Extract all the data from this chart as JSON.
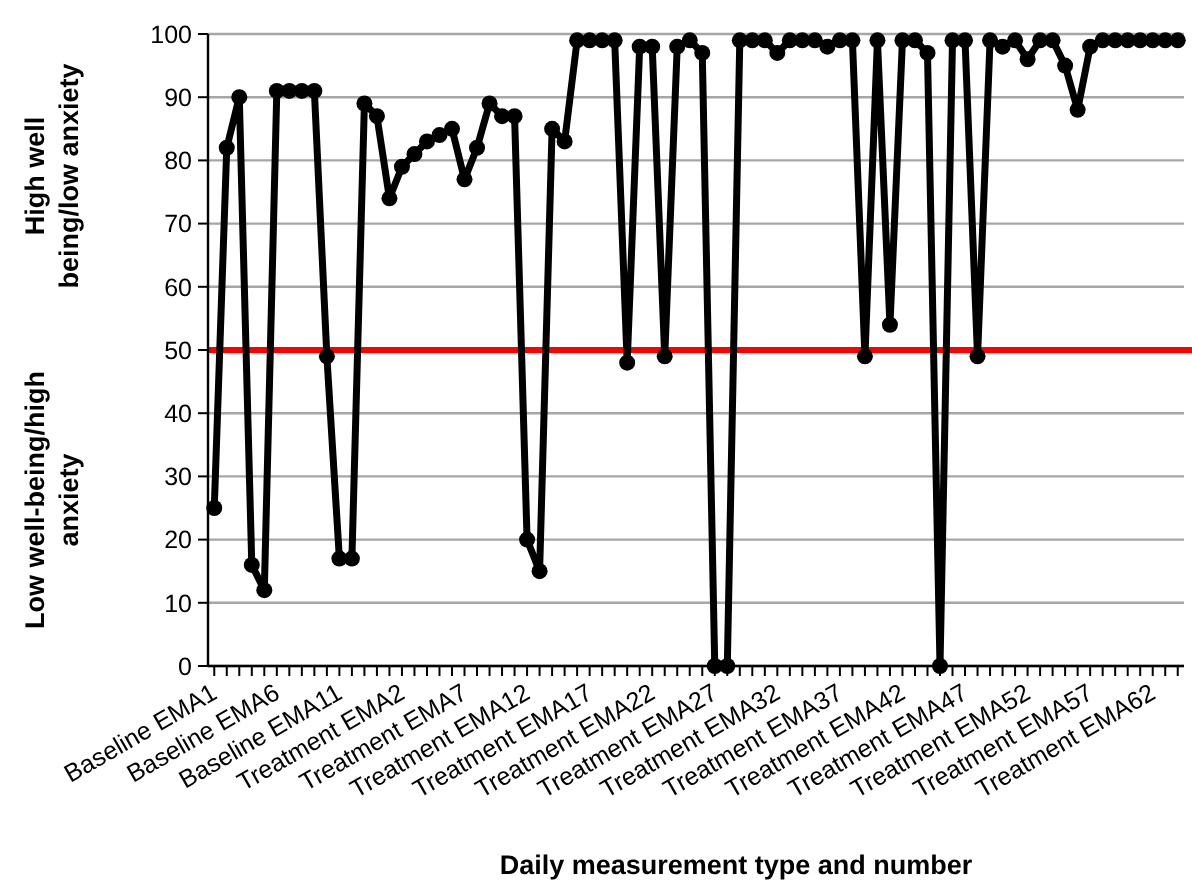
{
  "chart_data": {
    "type": "line",
    "xlabel": "Daily measurement type and number",
    "annotations": [
      "High well being/low anxiety",
      "Low well-being/high anxiety"
    ],
    "categories": [
      "Baseline EMA1",
      null,
      null,
      null,
      null,
      "Baseline EMA6",
      null,
      null,
      null,
      null,
      "Baseline EMA11",
      null,
      null,
      null,
      null,
      "Treatment EMA2",
      null,
      null,
      null,
      null,
      "Treatment EMA7",
      null,
      null,
      null,
      null,
      "Treatment EMA12",
      null,
      null,
      null,
      null,
      "Treatment EMA17",
      null,
      null,
      null,
      null,
      "Treatment EMA22",
      null,
      null,
      null,
      null,
      "Treatment EMA27",
      null,
      null,
      null,
      null,
      "Treatment EMA32",
      null,
      null,
      null,
      null,
      "Treatment EMA37",
      null,
      null,
      null,
      null,
      "Treatment EMA42",
      null,
      null,
      null,
      null,
      "Treatment EMA47",
      null,
      null,
      null,
      null,
      "Treatment EMA52",
      null,
      null,
      null,
      null,
      "Treatment EMA57",
      null,
      null,
      null,
      null,
      "Treatment EMA62",
      null,
      null
    ],
    "series": [
      {
        "color": "#000000",
        "values": [
          25,
          82,
          90,
          16,
          12,
          91,
          91,
          91,
          91,
          49,
          17,
          17,
          89,
          87,
          74,
          79,
          81,
          83,
          84,
          85,
          77,
          82,
          89,
          87,
          87,
          20,
          15,
          85,
          83,
          99,
          99,
          99,
          99,
          48,
          98,
          98,
          49,
          98,
          99,
          97,
          0,
          0,
          99,
          99,
          99,
          97,
          99,
          99,
          99,
          98,
          99,
          99,
          49,
          99,
          54,
          99,
          99,
          97,
          0,
          99,
          99,
          49,
          99,
          98,
          99,
          96,
          99,
          99,
          95,
          88,
          98,
          99,
          99,
          99,
          99,
          99,
          99,
          99
        ]
      }
    ],
    "ylim": [
      0,
      100
    ],
    "yticks": [
      0,
      10,
      20,
      30,
      40,
      50,
      60,
      70,
      80,
      90,
      100
    ],
    "grid": "y",
    "marker": "circle",
    "line_style": "solid",
    "ref_lines": [
      {
        "axis": "y",
        "value": 50,
        "color": "#ff0000"
      }
    ]
  }
}
